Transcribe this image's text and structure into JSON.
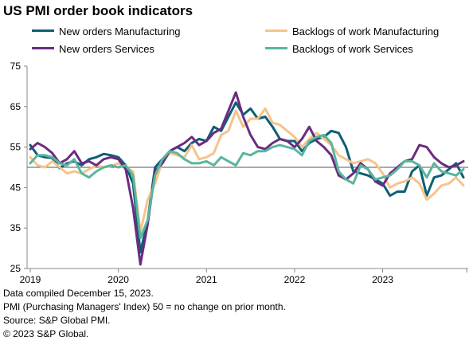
{
  "title": "US PMI order book indicators",
  "footnotes": [
    "Data compiled December 15, 2023.",
    "PMI (Purchasing Managers' Index) 50 =  no change on prior month.",
    "Source: S&P Global PMI.",
    "© 2023 S&P Global."
  ],
  "chart_data": {
    "type": "line",
    "title": "US PMI order book indicators",
    "xlabel": "",
    "ylabel": "",
    "ylim": [
      25,
      75
    ],
    "yticks": [
      25,
      35,
      45,
      55,
      65,
      75
    ],
    "xticks": [
      "2019",
      "2020",
      "2021",
      "2022",
      "2023"
    ],
    "reference_line": 50,
    "grid": false,
    "legend_position": "top",
    "x": [
      "2019-01",
      "2019-02",
      "2019-03",
      "2019-04",
      "2019-05",
      "2019-06",
      "2019-07",
      "2019-08",
      "2019-09",
      "2019-10",
      "2019-11",
      "2019-12",
      "2020-01",
      "2020-02",
      "2020-03",
      "2020-04",
      "2020-05",
      "2020-06",
      "2020-07",
      "2020-08",
      "2020-09",
      "2020-10",
      "2020-11",
      "2020-12",
      "2021-01",
      "2021-02",
      "2021-03",
      "2021-04",
      "2021-05",
      "2021-06",
      "2021-07",
      "2021-08",
      "2021-09",
      "2021-10",
      "2021-11",
      "2021-12",
      "2022-01",
      "2022-02",
      "2022-03",
      "2022-04",
      "2022-05",
      "2022-06",
      "2022-07",
      "2022-08",
      "2022-09",
      "2022-10",
      "2022-11",
      "2022-12",
      "2023-01",
      "2023-02",
      "2023-03",
      "2023-04",
      "2023-05",
      "2023-06",
      "2023-07",
      "2023-08",
      "2023-09",
      "2023-10",
      "2023-11",
      "2023-12"
    ],
    "series": [
      {
        "name": "New orders Manufacturing",
        "color": "#0e5f74",
        "values": [
          55.5,
          53.0,
          52.5,
          52.3,
          49.8,
          51.0,
          51.5,
          50.5,
          52.0,
          52.5,
          53.3,
          53.0,
          52.5,
          50.5,
          46.0,
          29.0,
          37.0,
          50.0,
          52.0,
          54.0,
          55.0,
          54.0,
          56.0,
          57.0,
          56.5,
          60.0,
          59.0,
          62.5,
          66.0,
          63.0,
          64.5,
          62.0,
          62.5,
          60.0,
          57.0,
          56.5,
          56.5,
          54.0,
          56.0,
          57.0,
          57.5,
          59.0,
          58.5,
          55.0,
          49.0,
          48.5,
          48.0,
          47.0,
          46.0,
          43.0,
          44.0,
          44.0,
          49.0,
          50.5,
          43.0,
          47.5,
          48.0,
          49.5,
          51.0,
          47.5
        ]
      },
      {
        "name": "Backlogs of work Manufacturing",
        "color": "#f5c48a",
        "values": [
          52.5,
          50.5,
          50.0,
          51.5,
          50.0,
          48.5,
          49.0,
          48.5,
          49.5,
          50.5,
          50.0,
          50.3,
          51.0,
          50.0,
          49.0,
          34.0,
          42.0,
          46.0,
          51.5,
          53.5,
          53.0,
          52.5,
          55.5,
          52.0,
          52.5,
          53.5,
          58.0,
          59.0,
          64.0,
          60.0,
          62.0,
          62.0,
          64.5,
          61.0,
          60.5,
          59.0,
          57.5,
          55.0,
          57.0,
          58.5,
          57.0,
          55.5,
          53.0,
          52.0,
          51.0,
          51.5,
          52.0,
          51.0,
          48.5,
          45.0,
          46.0,
          46.5,
          47.5,
          46.0,
          42.0,
          43.5,
          45.5,
          46.0,
          47.5,
          45.5
        ]
      },
      {
        "name": "New orders Services",
        "color": "#6a2c81",
        "values": [
          54.5,
          56.0,
          55.0,
          53.5,
          51.0,
          52.0,
          54.0,
          51.0,
          51.5,
          50.5,
          52.0,
          52.5,
          52.0,
          49.5,
          40.0,
          26.0,
          36.0,
          49.0,
          51.0,
          54.0,
          55.0,
          56.0,
          57.5,
          55.5,
          56.5,
          58.5,
          59.5,
          64.0,
          68.5,
          62.5,
          58.0,
          55.0,
          54.5,
          56.0,
          57.0,
          56.5,
          55.0,
          57.0,
          60.0,
          56.5,
          55.0,
          53.0,
          48.0,
          47.0,
          48.5,
          51.0,
          49.5,
          46.5,
          45.5,
          48.5,
          50.0,
          51.5,
          52.0,
          55.5,
          55.0,
          52.5,
          51.0,
          50.0,
          50.5,
          51.5
        ]
      },
      {
        "name": "Backlogs of work Services",
        "color": "#5ab59e",
        "values": [
          51.0,
          53.0,
          53.0,
          52.5,
          51.0,
          50.5,
          52.0,
          48.5,
          47.5,
          49.0,
          50.0,
          50.5,
          50.0,
          50.5,
          48.0,
          32.5,
          37.0,
          48.0,
          52.0,
          54.0,
          53.5,
          52.0,
          51.0,
          51.0,
          51.5,
          50.5,
          52.5,
          51.5,
          50.5,
          53.5,
          53.0,
          54.0,
          54.0,
          55.0,
          55.5,
          55.0,
          54.5,
          53.0,
          56.5,
          57.5,
          58.0,
          56.0,
          49.0,
          47.0,
          46.0,
          50.5,
          49.5,
          47.0,
          47.5,
          48.0,
          49.5,
          51.5,
          51.5,
          50.5,
          47.5,
          51.0,
          49.0,
          48.5,
          48.0,
          49.5
        ]
      }
    ]
  }
}
